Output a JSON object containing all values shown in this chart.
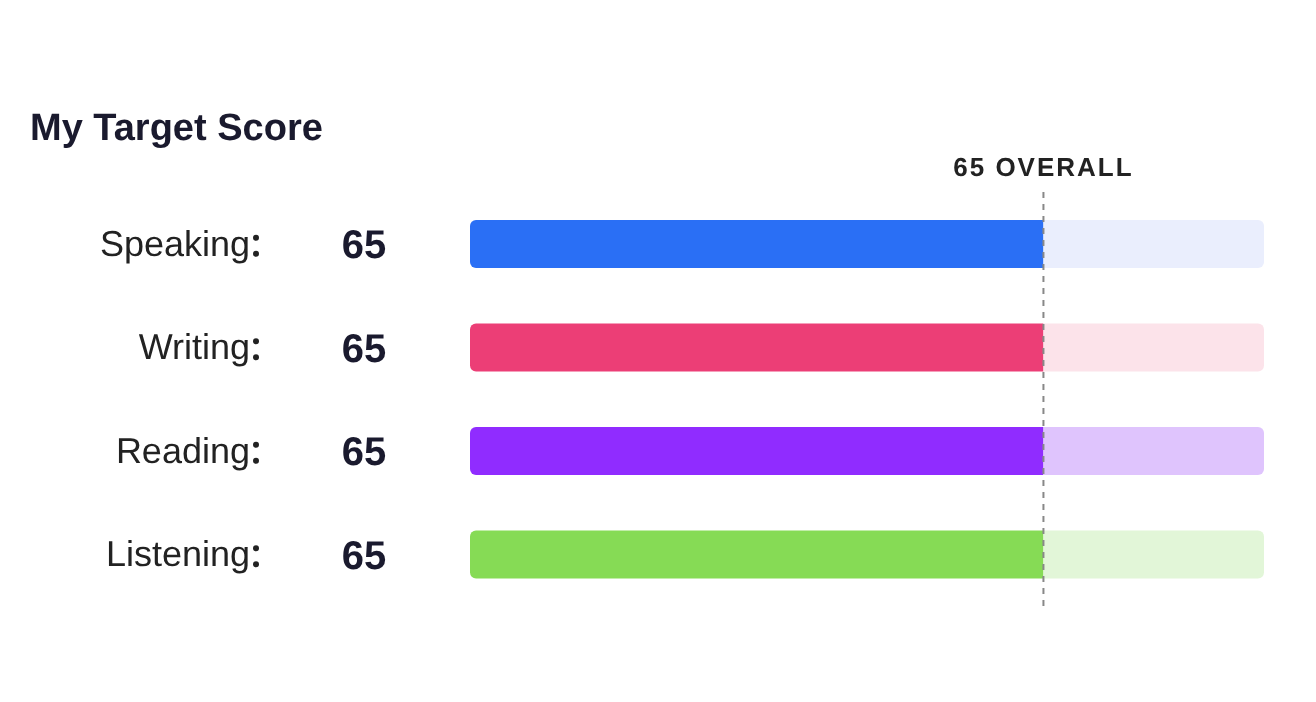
{
  "chart_data": {
    "type": "bar",
    "orientation": "horizontal",
    "stacked": true,
    "title": "My Target Score",
    "categories": [
      "Speaking",
      "Writing",
      "Reading",
      "Listening"
    ],
    "series": [
      {
        "colors": [
          "#2a6ff5",
          "#ec3e76",
          "#902cff",
          "#86db55"
        ],
        "values": [
          65,
          65,
          65,
          65
        ],
        "value_labels": [
          "65",
          "65",
          "65",
          "65"
        ]
      },
      {
        "colors": [
          "#eaeefd",
          "#fce3ea",
          "#dfc4fd",
          "#e2f6d8"
        ],
        "values": [
          25,
          25,
          25,
          25
        ]
      }
    ],
    "xlim": [
      0,
      90
    ],
    "tick_labels": "y",
    "ref_lines": [
      {
        "axis": "x",
        "value": 65,
        "label": "65 OVERALL",
        "color": "#888888",
        "line_style": "dashed"
      }
    ]
  }
}
